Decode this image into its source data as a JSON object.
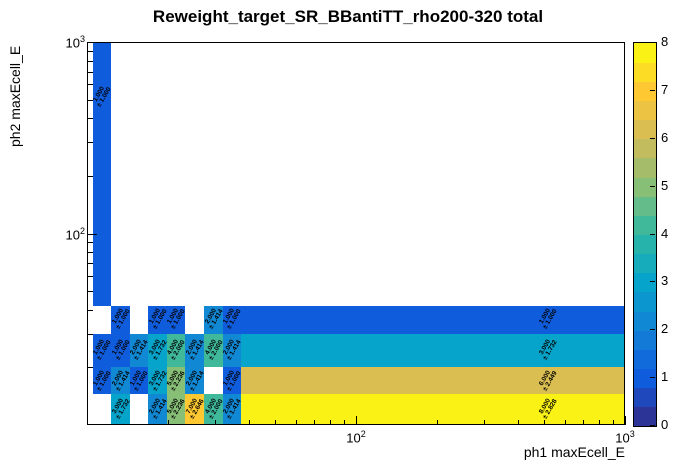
{
  "chart_data": {
    "type": "heatmap",
    "title": "Reweight_target_SR_BBantiTT_rho200-320 total",
    "xlabel": "ph1 maxEcell_E",
    "ylabel": "ph2 maxEcell_E",
    "x_scale": "log",
    "y_scale": "log",
    "x_range": [
      10,
      1000
    ],
    "y_range": [
      10,
      1000
    ],
    "z_range": [
      0,
      8
    ],
    "x_ticks": [
      {
        "value": 100,
        "mantissa": "10",
        "exponent": "2"
      },
      {
        "value": 1000,
        "mantissa": "10",
        "exponent": "3"
      }
    ],
    "y_ticks": [
      {
        "value": 100,
        "mantissa": "10",
        "exponent": "2"
      },
      {
        "value": 1000,
        "mantissa": "10",
        "exponent": "3"
      }
    ],
    "colorbar": {
      "n_steps": 20,
      "tick_labels": [
        "0",
        "1",
        "2",
        "3",
        "4",
        "5",
        "6",
        "7",
        "8"
      ],
      "palette": [
        "#352A87",
        "#0F5CDD",
        "#1481D6",
        "#06A4CA",
        "#2EB7A4",
        "#87BF77",
        "#D1BB59",
        "#FEC832",
        "#F9FB0E"
      ]
    },
    "cells": [
      {
        "x1": 10.5,
        "x2": 12.3,
        "y1": 42,
        "y2": 1000,
        "value": 1,
        "error": 1.0
      },
      {
        "x1": 12.3,
        "x2": 14.4,
        "y1": 30,
        "y2": 42,
        "value": 1,
        "error": 1.0
      },
      {
        "x1": 16.9,
        "x2": 19.8,
        "y1": 30,
        "y2": 42,
        "value": 1,
        "error": 1.0
      },
      {
        "x1": 19.8,
        "x2": 23.2,
        "y1": 30,
        "y2": 42,
        "value": 1,
        "error": 1.0
      },
      {
        "x1": 27.2,
        "x2": 31.9,
        "y1": 30,
        "y2": 42,
        "value": 2,
        "error": 1.414
      },
      {
        "x1": 31.9,
        "x2": 37.4,
        "y1": 30,
        "y2": 42,
        "value": 1,
        "error": 1.0
      },
      {
        "x1": 37.4,
        "x2": 1000,
        "y1": 30,
        "y2": 42,
        "value": 1,
        "error": 1.0
      },
      {
        "x1": 10.5,
        "x2": 12.3,
        "y1": 20,
        "y2": 30,
        "value": 1,
        "error": 1.0
      },
      {
        "x1": 12.3,
        "x2": 14.4,
        "y1": 20,
        "y2": 30,
        "value": 1,
        "error": 1.0
      },
      {
        "x1": 14.4,
        "x2": 16.9,
        "y1": 20,
        "y2": 30,
        "value": 2,
        "error": 1.414
      },
      {
        "x1": 16.9,
        "x2": 19.8,
        "y1": 20,
        "y2": 30,
        "value": 3,
        "error": 1.732
      },
      {
        "x1": 19.8,
        "x2": 23.2,
        "y1": 20,
        "y2": 30,
        "value": 4,
        "error": 2.0
      },
      {
        "x1": 23.2,
        "x2": 27.2,
        "y1": 20,
        "y2": 30,
        "value": 2,
        "error": 1.414
      },
      {
        "x1": 27.2,
        "x2": 31.9,
        "y1": 20,
        "y2": 30,
        "value": 4,
        "error": 2.0
      },
      {
        "x1": 31.9,
        "x2": 37.4,
        "y1": 20,
        "y2": 30,
        "value": 2,
        "error": 1.414
      },
      {
        "x1": 37.4,
        "x2": 1000,
        "y1": 20,
        "y2": 30,
        "value": 3,
        "error": 1.732
      },
      {
        "x1": 10.5,
        "x2": 12.3,
        "y1": 14.5,
        "y2": 20,
        "value": 1,
        "error": 1.0
      },
      {
        "x1": 12.3,
        "x2": 14.4,
        "y1": 14.5,
        "y2": 20,
        "value": 2,
        "error": 1.414
      },
      {
        "x1": 14.4,
        "x2": 16.9,
        "y1": 14.5,
        "y2": 20,
        "value": 1,
        "error": 1.0
      },
      {
        "x1": 16.9,
        "x2": 19.8,
        "y1": 14.5,
        "y2": 20,
        "value": 3,
        "error": 1.732
      },
      {
        "x1": 19.8,
        "x2": 23.2,
        "y1": 14.5,
        "y2": 20,
        "value": 5,
        "error": 2.236
      },
      {
        "x1": 23.2,
        "x2": 27.2,
        "y1": 14.5,
        "y2": 20,
        "value": 2,
        "error": 1.414
      },
      {
        "x1": 31.9,
        "x2": 37.4,
        "y1": 14.5,
        "y2": 20,
        "value": 1,
        "error": 1.0
      },
      {
        "x1": 37.4,
        "x2": 1000,
        "y1": 14.5,
        "y2": 20,
        "value": 6,
        "error": 2.449
      },
      {
        "x1": 12.3,
        "x2": 14.4,
        "y1": 10,
        "y2": 14.5,
        "value": 3,
        "error": 1.732
      },
      {
        "x1": 16.9,
        "x2": 19.8,
        "y1": 10,
        "y2": 14.5,
        "value": 2,
        "error": 1.414
      },
      {
        "x1": 19.8,
        "x2": 23.2,
        "y1": 10,
        "y2": 14.5,
        "value": 5,
        "error": 2.236
      },
      {
        "x1": 23.2,
        "x2": 27.2,
        "y1": 10,
        "y2": 14.5,
        "value": 7,
        "error": 2.646
      },
      {
        "x1": 27.2,
        "x2": 31.9,
        "y1": 10,
        "y2": 14.5,
        "value": 4,
        "error": 2.0
      },
      {
        "x1": 31.9,
        "x2": 37.4,
        "y1": 10,
        "y2": 14.5,
        "value": 2,
        "error": 1.414
      },
      {
        "x1": 37.4,
        "x2": 1000,
        "y1": 10,
        "y2": 14.5,
        "value": 8,
        "error": 2.828
      }
    ]
  }
}
